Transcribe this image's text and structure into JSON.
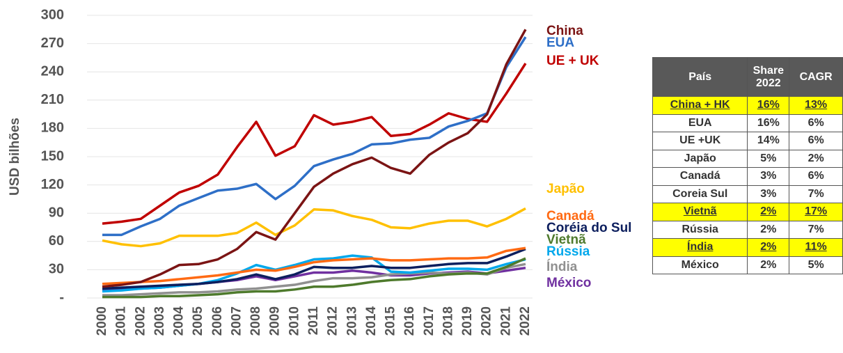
{
  "chart_data": {
    "type": "line",
    "y_label": "USD bilhões",
    "categories": [
      "2000",
      "2001",
      "2002",
      "2003",
      "2004",
      "2005",
      "2006",
      "2007",
      "2008",
      "2009",
      "2010",
      "2011",
      "2012",
      "2013",
      "2014",
      "2015",
      "2016",
      "2017",
      "2018",
      "2019",
      "2020",
      "2021",
      "2022"
    ],
    "ylim": [
      0,
      300
    ],
    "yticks": [
      {
        "value": 0,
        "label": "-"
      },
      30,
      60,
      90,
      120,
      150,
      180,
      210,
      240,
      270,
      300
    ],
    "grid": true,
    "series": [
      {
        "name": "China",
        "color": "#7b1414",
        "values": [
          12,
          14,
          17,
          25,
          35,
          36,
          41,
          52,
          70,
          62,
          90,
          118,
          132,
          142,
          149,
          138,
          132,
          152,
          165,
          175,
          195,
          248,
          285
        ]
      },
      {
        "name": "EUA",
        "color": "#2e6fc7",
        "values": [
          67,
          67,
          76,
          84,
          98,
          106,
          114,
          116,
          121,
          105,
          119,
          140,
          147,
          153,
          163,
          164,
          168,
          170,
          182,
          188,
          196,
          245,
          277
        ]
      },
      {
        "name": "UE + UK",
        "color": "#c00000",
        "values": [
          79,
          81,
          84,
          98,
          112,
          119,
          131,
          160,
          187,
          151,
          161,
          194,
          184,
          187,
          192,
          172,
          174,
          184,
          196,
          190,
          187,
          217,
          249
        ]
      },
      {
        "name": "Japão",
        "color": "#ffc000",
        "values": [
          61,
          57,
          55,
          58,
          66,
          66,
          66,
          69,
          80,
          67,
          77,
          94,
          93,
          87,
          83,
          75,
          74,
          79,
          82,
          82,
          76,
          84,
          95
        ]
      },
      {
        "name": "Canadá",
        "color": "#ff6a13",
        "values": [
          15,
          16,
          17,
          18,
          20,
          22,
          24,
          27,
          30,
          29,
          33,
          38,
          40,
          41,
          42,
          40,
          40,
          41,
          42,
          42,
          43,
          50,
          53
        ]
      },
      {
        "name": "Coréia do Sul",
        "color": "#0d1f5e",
        "values": [
          10,
          11,
          12,
          13,
          14,
          15,
          17,
          20,
          25,
          20,
          25,
          33,
          32,
          32,
          34,
          32,
          32,
          34,
          36,
          37,
          37,
          44,
          52
        ]
      },
      {
        "name": "Vietnã",
        "color": "#4e7a2c",
        "values": [
          1,
          1,
          1,
          2,
          2,
          3,
          4,
          6,
          7,
          7,
          9,
          12,
          12,
          14,
          17,
          19,
          20,
          23,
          25,
          26,
          26,
          33,
          42
        ]
      },
      {
        "name": "Rússia",
        "color": "#00a8ec",
        "values": [
          7,
          8,
          10,
          11,
          13,
          15,
          19,
          26,
          35,
          30,
          35,
          41,
          42,
          45,
          43,
          28,
          27,
          29,
          31,
          31,
          30,
          36,
          41
        ]
      },
      {
        "name": "Índia",
        "color": "#909090",
        "values": [
          3,
          3,
          4,
          5,
          6,
          6,
          7,
          9,
          10,
          12,
          14,
          18,
          21,
          21,
          22,
          25,
          26,
          27,
          26,
          27,
          25,
          32,
          36
        ]
      },
      {
        "name": "México",
        "color": "#7030a0",
        "values": [
          9,
          9,
          10,
          11,
          13,
          15,
          17,
          19,
          23,
          19,
          23,
          27,
          27,
          29,
          27,
          24,
          24,
          26,
          27,
          28,
          26,
          29,
          32
        ]
      }
    ]
  },
  "table": {
    "header": [
      "País",
      "Share 2022",
      "CAGR"
    ],
    "rows": [
      [
        "China + HK",
        "16%",
        "13%"
      ],
      [
        "EUA",
        "16%",
        "6%"
      ],
      [
        "UE +UK",
        "14%",
        "6%"
      ],
      [
        "Japão",
        "5%",
        "2%"
      ],
      [
        "Canadá",
        "3%",
        "6%"
      ],
      [
        "Coreia Sul",
        "3%",
        "7%"
      ],
      [
        "Vietnã",
        "2%",
        "17%"
      ],
      [
        "Rússia",
        "2%",
        "7%"
      ],
      [
        "Índia",
        "2%",
        "11%"
      ],
      [
        "México",
        "2%",
        "5%"
      ]
    ],
    "highlight_rows": [
      0,
      6,
      8
    ]
  }
}
